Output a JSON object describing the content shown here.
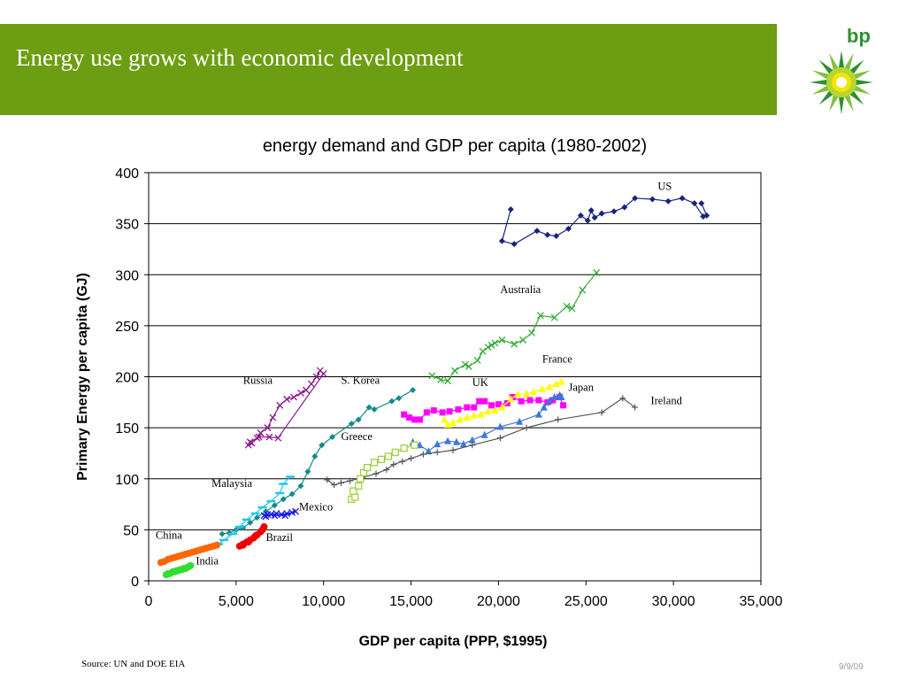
{
  "slide": {
    "title": "Energy use grows with economic development",
    "logo_text": "bp",
    "source": "Source: UN and DOE EIA",
    "date": "9/9/09"
  },
  "colors": {
    "header_bg": "#6d9d12",
    "logo_green": "#2f8f2f",
    "logo_yellow": "#f2e600"
  },
  "chart_data": {
    "type": "scatter",
    "title": "energy demand and GDP per capita (1980-2002)",
    "xlabel": "GDP per capita (PPP, $1995)",
    "ylabel": "Primary Energy per capita (GJ)",
    "xlim": [
      0,
      35000
    ],
    "ylim": [
      0,
      400
    ],
    "x_ticks": [
      0,
      5000,
      10000,
      15000,
      20000,
      25000,
      30000,
      35000
    ],
    "x_tick_labels": [
      "0",
      "5,000",
      "10,000",
      "15,000",
      "20,000",
      "25,000",
      "30,000",
      "35,000"
    ],
    "y_ticks": [
      0,
      50,
      100,
      150,
      200,
      250,
      300,
      350,
      400
    ],
    "y_tick_labels": [
      "0",
      "50",
      "100",
      "150",
      "200",
      "250",
      "300",
      "350",
      "400"
    ],
    "grid": "horizontal",
    "legend": "none",
    "series": [
      {
        "name": "US",
        "color": "#1a237e",
        "marker": "diamond",
        "x": [
          20700,
          20200,
          20900,
          22200,
          22800,
          23300,
          24000,
          24700,
          25100,
          25300,
          25500,
          25900,
          26600,
          27200,
          27800,
          28800,
          29700,
          30500,
          31200,
          31700,
          31900,
          31600
        ],
        "y": [
          364,
          333,
          330,
          343,
          339,
          338,
          345,
          358,
          353,
          363,
          356,
          360,
          362,
          366,
          375,
          374,
          372,
          375,
          370,
          357,
          358,
          370
        ]
      },
      {
        "name": "Australia",
        "color": "#33aa33",
        "marker": "x",
        "x": [
          16200,
          16700,
          17100,
          17500,
          18100,
          18300,
          18800,
          19100,
          19400,
          19600,
          19800,
          20200,
          20900,
          21400,
          21900,
          22400,
          23200,
          23900,
          24200,
          24800,
          25600
        ],
        "y": [
          201,
          197,
          196,
          206,
          212,
          210,
          216,
          225,
          229,
          231,
          233,
          236,
          232,
          236,
          243,
          260,
          258,
          269,
          267,
          285,
          302
        ]
      },
      {
        "name": "Russia",
        "color": "#8b1a8b",
        "marker": "x",
        "x": [
          5700,
          5900,
          6200,
          6400,
          6800,
          7100,
          7500,
          7900,
          8300,
          8700,
          9000,
          9300,
          9600,
          9800,
          10000,
          7400,
          6900,
          6300,
          5800
        ],
        "y": [
          133,
          135,
          140,
          145,
          150,
          160,
          172,
          178,
          180,
          184,
          187,
          193,
          200,
          206,
          203,
          140,
          141,
          141,
          136
        ]
      },
      {
        "name": "S. Korea",
        "color": "#158a8a",
        "marker": "diamond",
        "x": [
          4200,
          4600,
          5000,
          5400,
          5800,
          6200,
          6700,
          7200,
          7700,
          8200,
          8700,
          9100,
          9500,
          9900,
          10500,
          11600,
          12000,
          12600,
          12900,
          13900,
          14300,
          15100
        ],
        "y": [
          46,
          47,
          50,
          52,
          57,
          62,
          68,
          74,
          80,
          85,
          93,
          107,
          122,
          133,
          141,
          154,
          158,
          170,
          168,
          176,
          179,
          187
        ]
      },
      {
        "name": "UK",
        "color": "#ff00ff",
        "marker": "square",
        "x": [
          14600,
          14900,
          15200,
          15500,
          15900,
          16300,
          16800,
          17200,
          17700,
          18200,
          18600,
          18900,
          19200,
          19600,
          20000,
          20500,
          20800,
          21300,
          21800,
          22300,
          22800,
          23100,
          23500,
          23700
        ],
        "y": [
          163,
          160,
          158,
          158,
          165,
          167,
          165,
          166,
          168,
          170,
          170,
          176,
          176,
          172,
          173,
          174,
          180,
          176,
          177,
          177,
          175,
          177,
          180,
          172
        ]
      },
      {
        "name": "France",
        "color": "#ffff00",
        "marker": "triangle",
        "x": [
          16900,
          17100,
          17400,
          17800,
          18200,
          18600,
          19000,
          19400,
          19800,
          20200,
          20700,
          21100,
          21600,
          22000,
          22500,
          22900,
          23300,
          23600
        ],
        "y": [
          158,
          153,
          155,
          158,
          160,
          162,
          163,
          166,
          167,
          170,
          178,
          183,
          183,
          185,
          188,
          190,
          193,
          195
        ]
      },
      {
        "name": "Japan",
        "color": "#3c78d8",
        "marker": "triangle",
        "x": [
          15100,
          15500,
          16000,
          16500,
          17100,
          17600,
          18000,
          18500,
          19200,
          20100,
          21200,
          22300,
          22600,
          22900,
          23200,
          23500,
          23600
        ],
        "y": [
          136,
          133,
          127,
          134,
          137,
          136,
          134,
          138,
          143,
          151,
          156,
          163,
          170,
          176,
          180,
          182,
          180
        ]
      },
      {
        "name": "Ireland",
        "color": "#555555",
        "marker": "plus",
        "x": [
          10200,
          10600,
          11000,
          11500,
          12200,
          13000,
          13600,
          14000,
          14500,
          15000,
          15700,
          16500,
          17400,
          18500,
          20100,
          21600,
          23400,
          25900,
          27100,
          27800
        ],
        "y": [
          99,
          94,
          96,
          98,
          101,
          105,
          109,
          114,
          117,
          120,
          124,
          126,
          128,
          133,
          140,
          150,
          158,
          165,
          179,
          170
        ]
      },
      {
        "name": "Greece",
        "color": "#9acd32",
        "marker": "square-open",
        "x": [
          11600,
          11800,
          11700,
          12000,
          12100,
          12300,
          12500,
          12900,
          13300,
          13700,
          14100,
          14600,
          15200
        ],
        "y": [
          80,
          82,
          88,
          93,
          100,
          106,
          111,
          116,
          119,
          122,
          126,
          130,
          133
        ]
      },
      {
        "name": "Malaysia",
        "color": "#1ec8e8",
        "marker": "dash",
        "x": [
          4000,
          4300,
          4800,
          5200,
          5600,
          6100,
          6500,
          7000,
          7500,
          7700,
          8100
        ],
        "y": [
          36,
          40,
          46,
          53,
          60,
          66,
          72,
          78,
          86,
          95,
          102
        ]
      },
      {
        "name": "Mexico",
        "color": "#1a1ae0",
        "marker": "x",
        "x": [
          6700,
          7000,
          7300,
          7600,
          7900,
          8200,
          8400,
          7800,
          7200,
          6800,
          6600
        ],
        "y": [
          63,
          65,
          66,
          65,
          66,
          67,
          68,
          64,
          64,
          65,
          64
        ]
      },
      {
        "name": "Brazil",
        "color": "#ee0000",
        "marker": "circle",
        "x": [
          5200,
          5400,
          5600,
          5800,
          6000,
          6200,
          6400,
          6600,
          6500,
          6100,
          5700,
          5400
        ],
        "y": [
          34,
          36,
          38,
          40,
          42,
          45,
          48,
          53,
          50,
          44,
          38,
          35
        ]
      },
      {
        "name": "China",
        "color": "#ff6600",
        "marker": "circle",
        "x": [
          700,
          900,
          1100,
          1300,
          1500,
          1700,
          1900,
          2100,
          2300,
          2500,
          2700,
          2900,
          3100,
          3300,
          3500,
          3700,
          3900
        ],
        "y": [
          18,
          19,
          21,
          22,
          23,
          24,
          25,
          26,
          27,
          28,
          29,
          30,
          31,
          32,
          33,
          34,
          35
        ]
      },
      {
        "name": "India",
        "color": "#33dd33",
        "marker": "circle",
        "x": [
          1000,
          1100,
          1200,
          1300,
          1400,
          1500,
          1600,
          1700,
          1800,
          1900,
          2000,
          2100,
          2200,
          2300,
          2400
        ],
        "y": [
          6,
          7,
          7,
          8,
          9,
          9,
          10,
          10,
          11,
          11,
          12,
          12,
          13,
          14,
          15
        ]
      }
    ],
    "annotations": [
      {
        "text": "US",
        "x": 29100,
        "y": 383
      },
      {
        "text": "Australia",
        "x": 20100,
        "y": 282
      },
      {
        "text": "France",
        "x": 22500,
        "y": 214
      },
      {
        "text": "Russia",
        "x": 5400,
        "y": 193
      },
      {
        "text": "S. Korea",
        "x": 11000,
        "y": 193
      },
      {
        "text": "UK",
        "x": 18500,
        "y": 191
      },
      {
        "text": "Japan",
        "x": 24000,
        "y": 186
      },
      {
        "text": "Ireland",
        "x": 28700,
        "y": 173
      },
      {
        "text": "Greece",
        "x": 11000,
        "y": 138
      },
      {
        "text": "Malaysia",
        "x": 3600,
        "y": 92
      },
      {
        "text": "Mexico",
        "x": 8600,
        "y": 69
      },
      {
        "text": "China",
        "x": 400,
        "y": 41
      },
      {
        "text": "Brazil",
        "x": 6700,
        "y": 39
      },
      {
        "text": "India",
        "x": 2700,
        "y": 16
      }
    ]
  }
}
